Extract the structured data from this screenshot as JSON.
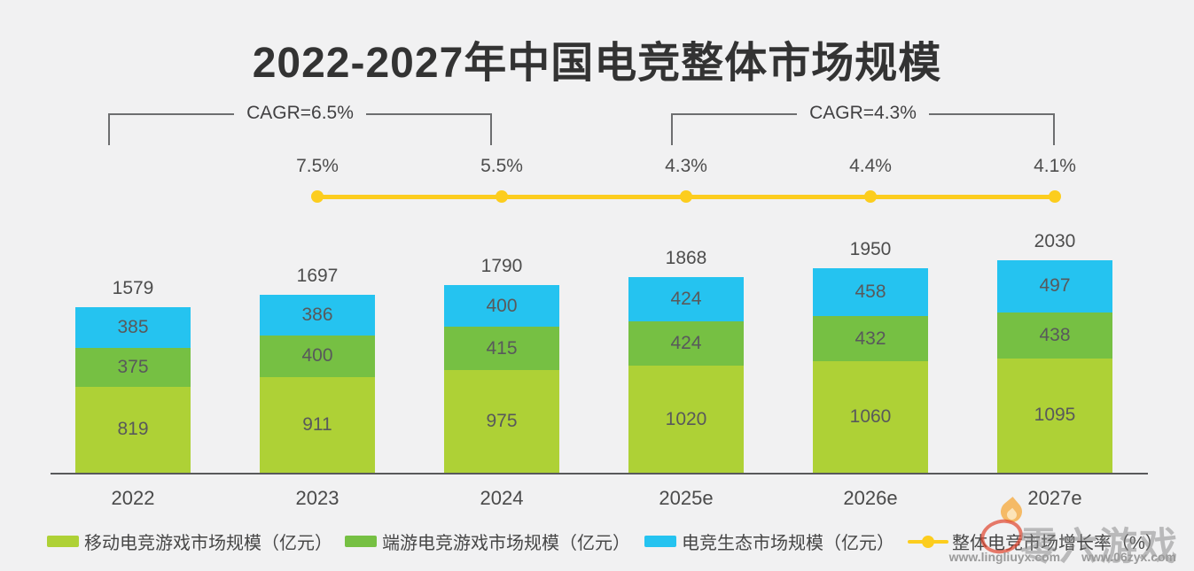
{
  "title": "2022-2027年中国电竞整体市场规模",
  "cagr_brackets": [
    {
      "label": "CAGR=6.5%"
    },
    {
      "label": "CAGR=4.3%"
    }
  ],
  "chart_data": {
    "type": "bar",
    "subtype": "stacked-bars-with-growth-line",
    "categories": [
      "2022",
      "2023",
      "2024",
      "2025e",
      "2026e",
      "2027e"
    ],
    "series": [
      {
        "name": "移动电竞游戏市场规模（亿元）",
        "color": "#aed136",
        "values": [
          819,
          911,
          975,
          1020,
          1060,
          1095
        ]
      },
      {
        "name": "端游电竞游戏市场规模（亿元）",
        "color": "#76c043",
        "values": [
          375,
          400,
          415,
          424,
          432,
          438
        ]
      },
      {
        "name": "电竞生态市场规模（亿元）",
        "color": "#25c3f0",
        "values": [
          385,
          386,
          400,
          424,
          458,
          497
        ]
      }
    ],
    "totals": [
      1579,
      1697,
      1790,
      1868,
      1950,
      2030
    ],
    "growth_line": {
      "name": "整体电竞市场增长率（%）",
      "color": "#fccd1e",
      "labels": [
        "7.5%",
        "5.5%",
        "4.3%",
        "4.4%",
        "4.1%"
      ],
      "on_categories": [
        "2023",
        "2024",
        "2025e",
        "2026e",
        "2027e"
      ]
    },
    "ylabel": "",
    "xlabel": "",
    "grid": false,
    "legend_position": "bottom"
  },
  "watermark": {
    "brand": "零六游戏",
    "url1": "www.lingliuyx.com",
    "url2": "www.06zyx.com"
  }
}
